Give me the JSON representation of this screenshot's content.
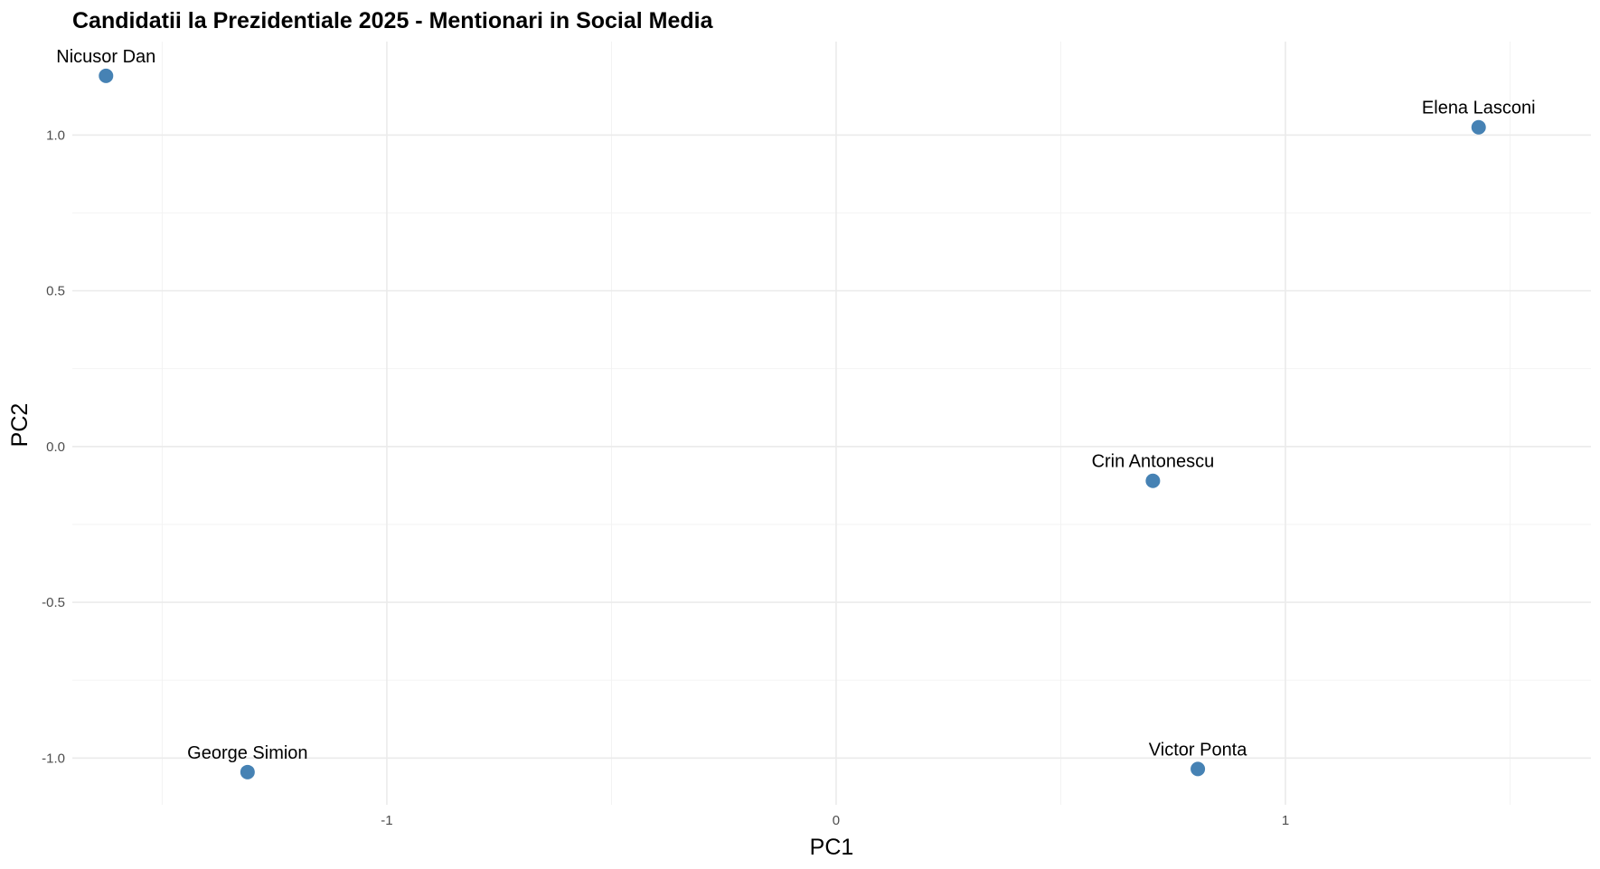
{
  "chart_data": {
    "type": "scatter",
    "title": "Candidatii la Prezidentiale 2025 - Mentionari in Social Media",
    "xlabel": "PC1",
    "ylabel": "PC2",
    "xlim": [
      -1.7,
      1.68
    ],
    "ylim": [
      -1.15,
      1.3
    ],
    "x_ticks": [
      -1,
      0,
      1
    ],
    "x_tick_labels": [
      "-1",
      "0",
      "1"
    ],
    "x_minor_ticks": [
      -1.5,
      -0.5,
      0.5,
      1.5
    ],
    "y_ticks": [
      -1.0,
      -0.5,
      0.0,
      0.5,
      1.0
    ],
    "y_tick_labels": [
      "-1.0",
      "-0.5",
      "0.0",
      "0.5",
      "1.0"
    ],
    "y_minor_ticks": [
      -0.75,
      -0.25,
      0.25,
      0.75
    ],
    "grid": true,
    "point_color": "#4682b4",
    "points": [
      {
        "label": "Nicusor Dan",
        "x": -1.625,
        "y": 1.19
      },
      {
        "label": "Elena Lasconi",
        "x": 1.43,
        "y": 1.025
      },
      {
        "label": "Crin Antonescu",
        "x": 0.705,
        "y": -0.11
      },
      {
        "label": "George Simion",
        "x": -1.31,
        "y": -1.045
      },
      {
        "label": "Victor Ponta",
        "x": 0.805,
        "y": -1.035
      }
    ]
  }
}
